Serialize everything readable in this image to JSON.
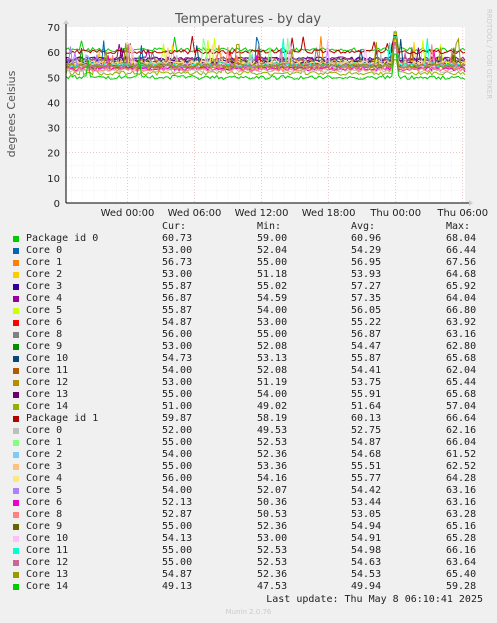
{
  "header": {
    "title": "Temperatures - by day"
  },
  "side_note": "RRDTOOL / TOBI OETIKER",
  "footer": {
    "last_update": "Last update: Thu May  8 06:10:41 2025",
    "munin": "Munin 2.0.76"
  },
  "legend": {
    "headers": {
      "cur": "Cur:",
      "min": "Min:",
      "avg": "Avg:",
      "max": "Max:"
    },
    "rows": [
      {
        "name": "Package id 0",
        "cur": "60.73",
        "min": "59.00",
        "avg": "60.96",
        "max": "68.04",
        "color": "#00cc00"
      },
      {
        "name": "Core 0",
        "cur": "53.00",
        "min": "52.04",
        "avg": "54.29",
        "max": "66.44",
        "color": "#0066b3"
      },
      {
        "name": "Core 1",
        "cur": "56.73",
        "min": "55.00",
        "avg": "56.95",
        "max": "67.56",
        "color": "#ff8000"
      },
      {
        "name": "Core 2",
        "cur": "53.00",
        "min": "51.18",
        "avg": "53.93",
        "max": "64.68",
        "color": "#ffcc00"
      },
      {
        "name": "Core 3",
        "cur": "55.87",
        "min": "55.02",
        "avg": "57.27",
        "max": "65.92",
        "color": "#330099"
      },
      {
        "name": "Core 4",
        "cur": "56.87",
        "min": "54.59",
        "avg": "57.35",
        "max": "64.04",
        "color": "#990099"
      },
      {
        "name": "Core 5",
        "cur": "55.87",
        "min": "54.00",
        "avg": "56.05",
        "max": "66.80",
        "color": "#ccff00"
      },
      {
        "name": "Core 6",
        "cur": "54.87",
        "min": "53.00",
        "avg": "55.22",
        "max": "63.92",
        "color": "#ff0000"
      },
      {
        "name": "Core 8",
        "cur": "56.00",
        "min": "55.00",
        "avg": "56.87",
        "max": "63.16",
        "color": "#808080"
      },
      {
        "name": "Core 9",
        "cur": "53.00",
        "min": "52.08",
        "avg": "54.47",
        "max": "62.80",
        "color": "#008f00"
      },
      {
        "name": "Core 10",
        "cur": "54.73",
        "min": "53.13",
        "avg": "55.87",
        "max": "65.68",
        "color": "#00487d"
      },
      {
        "name": "Core 11",
        "cur": "54.00",
        "min": "52.08",
        "avg": "54.41",
        "max": "62.04",
        "color": "#b35a00"
      },
      {
        "name": "Core 12",
        "cur": "53.00",
        "min": "51.19",
        "avg": "53.75",
        "max": "65.44",
        "color": "#b38f00"
      },
      {
        "name": "Core 13",
        "cur": "55.00",
        "min": "54.00",
        "avg": "55.91",
        "max": "65.68",
        "color": "#6b006b"
      },
      {
        "name": "Core 14",
        "cur": "51.00",
        "min": "49.02",
        "avg": "51.64",
        "max": "57.04",
        "color": "#8fb300"
      },
      {
        "name": "Package id 1",
        "cur": "59.87",
        "min": "58.19",
        "avg": "60.13",
        "max": "66.64",
        "color": "#b30000"
      },
      {
        "name": "Core 0",
        "cur": "52.00",
        "min": "49.53",
        "avg": "52.75",
        "max": "62.16",
        "color": "#bebebe"
      },
      {
        "name": "Core 1",
        "cur": "55.00",
        "min": "52.53",
        "avg": "54.87",
        "max": "66.04",
        "color": "#80ff80"
      },
      {
        "name": "Core 2",
        "cur": "54.00",
        "min": "52.36",
        "avg": "54.68",
        "max": "61.52",
        "color": "#80c9ff"
      },
      {
        "name": "Core 3",
        "cur": "55.00",
        "min": "53.36",
        "avg": "55.51",
        "max": "62.52",
        "color": "#ffc080"
      },
      {
        "name": "Core 4",
        "cur": "56.00",
        "min": "54.16",
        "avg": "55.77",
        "max": "64.28",
        "color": "#ffe680"
      },
      {
        "name": "Core 5",
        "cur": "54.00",
        "min": "52.07",
        "avg": "54.42",
        "max": "63.16",
        "color": "#aa80ff"
      },
      {
        "name": "Core 6",
        "cur": "52.13",
        "min": "50.36",
        "avg": "53.44",
        "max": "63.16",
        "color": "#ee00cc"
      },
      {
        "name": "Core 8",
        "cur": "52.87",
        "min": "50.53",
        "avg": "53.05",
        "max": "63.28",
        "color": "#ff8080"
      },
      {
        "name": "Core 9",
        "cur": "55.00",
        "min": "52.36",
        "avg": "54.94",
        "max": "65.16",
        "color": "#666600"
      },
      {
        "name": "Core 10",
        "cur": "54.13",
        "min": "53.00",
        "avg": "54.91",
        "max": "65.28",
        "color": "#ffbfff"
      },
      {
        "name": "Core 11",
        "cur": "55.00",
        "min": "52.53",
        "avg": "54.98",
        "max": "66.16",
        "color": "#00ffcc"
      },
      {
        "name": "Core 12",
        "cur": "55.00",
        "min": "52.53",
        "avg": "54.63",
        "max": "63.64",
        "color": "#cc6699"
      },
      {
        "name": "Core 13",
        "cur": "54.87",
        "min": "52.36",
        "avg": "54.53",
        "max": "65.40",
        "color": "#999900"
      },
      {
        "name": "Core 14",
        "cur": "49.13",
        "min": "47.53",
        "avg": "49.94",
        "max": "59.28",
        "color": "#00cc00"
      }
    ]
  },
  "chart_data": {
    "type": "line",
    "title": "Temperatures - by day",
    "ylabel": "degrees Celsius",
    "ylim": [
      0,
      70
    ],
    "yticks": [
      "0",
      "10",
      "20",
      "30",
      "40",
      "50",
      "60",
      "70"
    ],
    "xticks": [
      "Wed 00:00",
      "Wed 06:00",
      "Wed 12:00",
      "Wed 18:00",
      "Thu 00:00",
      "Thu 06:00"
    ],
    "xrange_hours": [
      -5.5,
      30.2
    ],
    "grid": true,
    "legend": "bottom"
  }
}
